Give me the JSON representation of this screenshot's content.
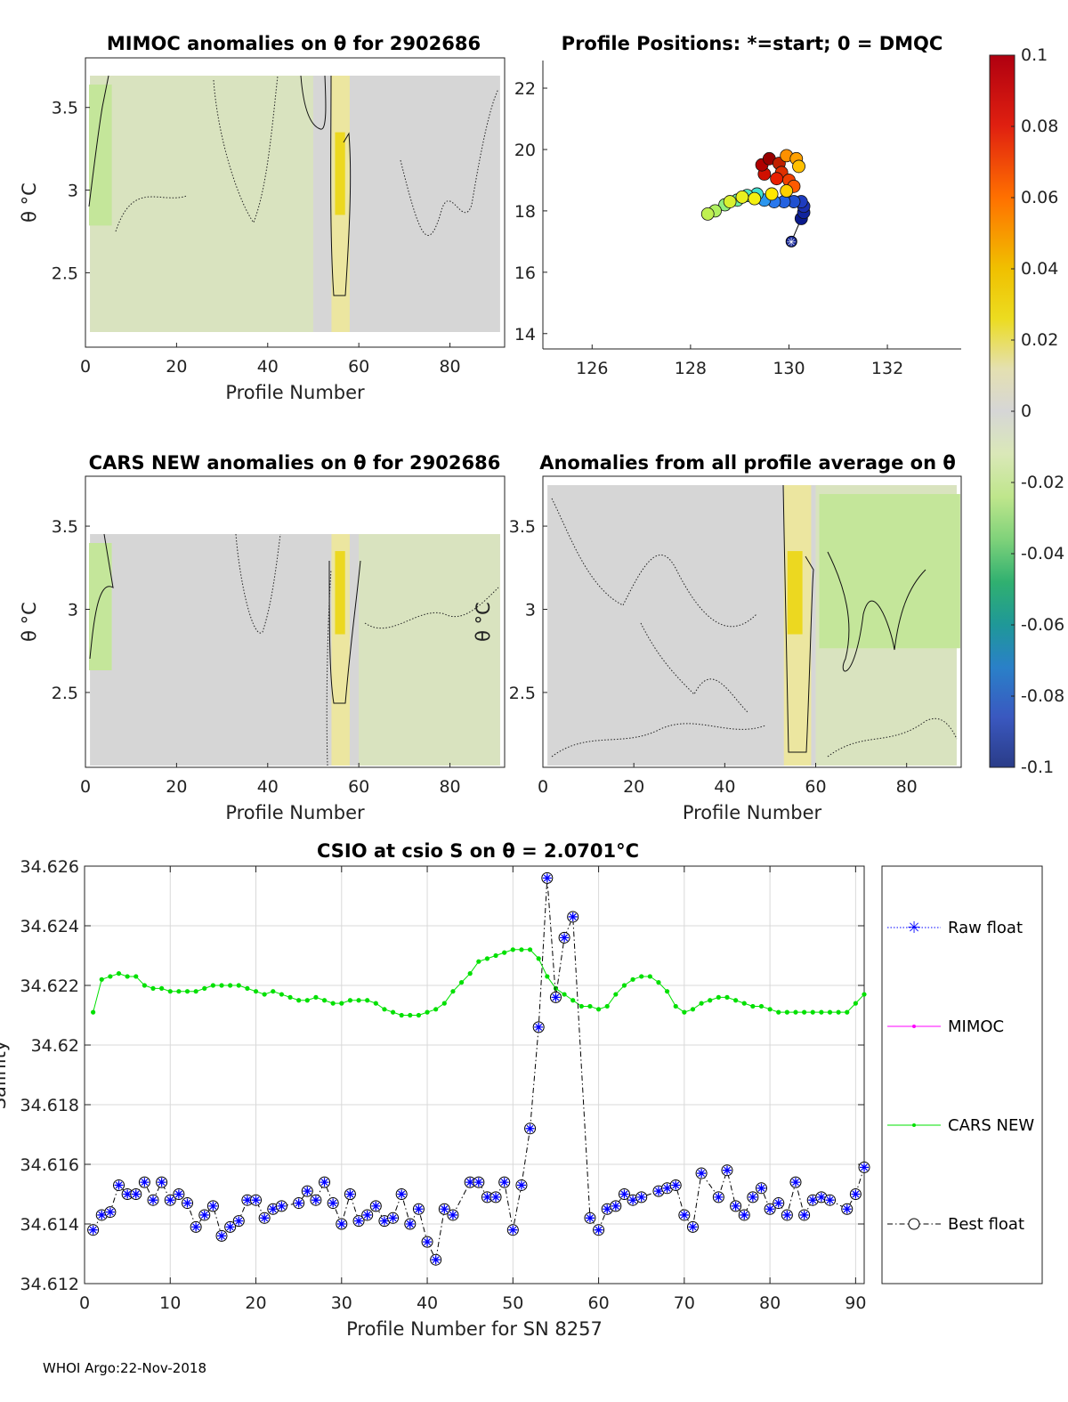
{
  "chart_data": [
    {
      "type": "heatmap",
      "title": "MIMOC anomalies on θ  for 2902686",
      "xlabel": "Profile Number",
      "ylabel": "θ °C",
      "xlim": [
        0,
        92
      ],
      "ylim": [
        2.05,
        3.8
      ],
      "xticks": [
        "0",
        "20",
        "40",
        "60",
        "80"
      ],
      "yticks": [
        "3.5",
        "3",
        "2.5"
      ],
      "warm_columns": {
        "profile_start": 54,
        "profile_end": 58,
        "value": 0.03
      },
      "cool_columns": {
        "profile_start": 0,
        "profile_end": 5,
        "value": -0.015
      }
    },
    {
      "type": "scatter",
      "title": "Profile Positions: *=start; 0 = DMQC",
      "xlim": [
        125,
        133.5
      ],
      "ylim": [
        13.5,
        22.9
      ],
      "xticks": [
        "126",
        "128",
        "130",
        "132"
      ],
      "yticks": [
        "22",
        "20",
        "18",
        "16",
        "14"
      ],
      "start": [
        130.05,
        17.0
      ],
      "points": [
        [
          130.25,
          17.75,
          "#0a1a8c"
        ],
        [
          130.3,
          17.95,
          "#10249e"
        ],
        [
          130.3,
          18.15,
          "#1a2fb0"
        ],
        [
          130.25,
          18.3,
          "#1e3cc0"
        ],
        [
          130.1,
          18.3,
          "#2050d0"
        ],
        [
          129.9,
          18.3,
          "#2462e0"
        ],
        [
          129.7,
          18.3,
          "#2a78ec"
        ],
        [
          129.5,
          18.35,
          "#2c96ee"
        ],
        [
          129.35,
          18.55,
          "#40e0d0"
        ],
        [
          129.15,
          18.5,
          "#50e8c0"
        ],
        [
          128.95,
          18.35,
          "#70f0a0"
        ],
        [
          128.7,
          18.2,
          "#90f080"
        ],
        [
          128.5,
          18.0,
          "#b0f060"
        ],
        [
          128.35,
          17.9,
          "#c0f050"
        ],
        [
          128.8,
          18.3,
          "#d8f030"
        ],
        [
          129.05,
          18.45,
          "#e8f020"
        ],
        [
          129.3,
          18.4,
          "#f4f010"
        ],
        [
          129.65,
          18.55,
          "#ffe800"
        ],
        [
          129.5,
          19.2,
          "#d01000"
        ],
        [
          129.45,
          19.5,
          "#b00000"
        ],
        [
          129.6,
          19.7,
          "#980000"
        ],
        [
          129.8,
          19.55,
          "#c02000"
        ],
        [
          129.85,
          19.25,
          "#e03000"
        ],
        [
          130.0,
          19.0,
          "#f04000"
        ],
        [
          130.1,
          18.8,
          "#ff5a00"
        ],
        [
          129.95,
          18.65,
          "#ffd000"
        ],
        [
          129.95,
          19.8,
          "#ff9000"
        ],
        [
          130.15,
          19.7,
          "#ffa000"
        ],
        [
          130.2,
          19.45,
          "#ffc000"
        ],
        [
          129.75,
          19.05,
          "#e82000"
        ]
      ]
    },
    {
      "type": "heatmap",
      "title": "CARS NEW anomalies on θ for 2902686",
      "xlabel": "Profile Number",
      "ylabel": "θ °C",
      "xlim": [
        0,
        92
      ],
      "ylim": [
        2.05,
        3.8
      ],
      "xticks": [
        "0",
        "20",
        "40",
        "60",
        "80"
      ],
      "yticks": [
        "3.5",
        "3",
        "2.5"
      ],
      "warm_columns": {
        "profile_start": 54,
        "profile_end": 58,
        "value": 0.03
      },
      "cool_columns": {
        "profile_start": 0,
        "profile_end": 5,
        "value": -0.015
      }
    },
    {
      "type": "heatmap",
      "title": "Anomalies from all profile average on θ",
      "xlabel": "Profile Number",
      "ylabel": "θ °C",
      "xlim": [
        0,
        92
      ],
      "ylim": [
        2.05,
        3.8
      ],
      "xticks": [
        "0",
        "20",
        "40",
        "60",
        "80"
      ],
      "yticks": [
        "3.5",
        "3",
        "2.5"
      ],
      "warm_columns": {
        "profile_start": 53,
        "profile_end": 59,
        "value": 0.03
      },
      "cool_columns": {
        "profile_start": 60,
        "profile_end": 91,
        "value": -0.012
      }
    },
    {
      "type": "colorbar",
      "range": [
        -0.1,
        0.1
      ],
      "ticks": [
        "0.1",
        "0.08",
        "0.06",
        "0.04",
        "0.02",
        "0",
        "-0.02",
        "-0.04",
        "-0.06",
        "-0.08",
        "-0.1"
      ]
    },
    {
      "type": "line",
      "title": "CSIO at csio S on θ = 2.0701°C",
      "xlabel": "Profile Number for SN 8257",
      "ylabel": "Salinity",
      "xlim": [
        0,
        91
      ],
      "ylim": [
        34.612,
        34.626
      ],
      "grid": true,
      "legend_placement": "right-outside",
      "xticks": [
        "0",
        "10",
        "20",
        "30",
        "40",
        "50",
        "60",
        "70",
        "80",
        "90"
      ],
      "yticks": [
        "34.626",
        "34.624",
        "34.622",
        "34.62",
        "34.618",
        "34.616",
        "34.614",
        "34.612"
      ],
      "series": [
        {
          "name": "Raw float",
          "color": "#0000ff"
        },
        {
          "name": "MIMOC",
          "color": "#ff00ff"
        },
        {
          "name": "CARS NEW",
          "color": "#00e000",
          "x": [
            1,
            2,
            3,
            4,
            5,
            6,
            7,
            8,
            9,
            10,
            11,
            12,
            13,
            14,
            15,
            16,
            17,
            18,
            19,
            20,
            21,
            22,
            23,
            24,
            25,
            26,
            27,
            28,
            29,
            30,
            31,
            32,
            33,
            34,
            35,
            36,
            37,
            38,
            39,
            40,
            41,
            42,
            43,
            44,
            45,
            46,
            47,
            48,
            49,
            50,
            51,
            52,
            53,
            54,
            55,
            56,
            57,
            58,
            59,
            60,
            61,
            62,
            63,
            64,
            65,
            66,
            67,
            68,
            69,
            70,
            71,
            72,
            73,
            74,
            75,
            76,
            77,
            78,
            79,
            80,
            81,
            82,
            83,
            84,
            85,
            86,
            87,
            88,
            89,
            90,
            91
          ],
          "y": [
            34.6211,
            34.6222,
            34.6223,
            34.6224,
            34.6223,
            34.6223,
            34.622,
            34.6219,
            34.6219,
            34.6218,
            34.6218,
            34.6218,
            34.6218,
            34.6219,
            34.622,
            34.622,
            34.622,
            34.622,
            34.6219,
            34.6218,
            34.6217,
            34.6218,
            34.6217,
            34.6216,
            34.6215,
            34.6215,
            34.6216,
            34.6215,
            34.6214,
            34.6214,
            34.6215,
            34.6215,
            34.6215,
            34.6214,
            34.6212,
            34.6211,
            34.621,
            34.621,
            34.621,
            34.6211,
            34.6212,
            34.6214,
            34.6218,
            34.6221,
            34.6224,
            34.6228,
            34.6229,
            34.623,
            34.6231,
            34.6232,
            34.6232,
            34.6232,
            34.6229,
            34.6223,
            34.6219,
            34.6217,
            34.6215,
            34.6213,
            34.6213,
            34.6212,
            34.6213,
            34.6217,
            34.622,
            34.6222,
            34.6223,
            34.6223,
            34.6221,
            34.6218,
            34.6213,
            34.6211,
            34.6212,
            34.6214,
            34.6215,
            34.6216,
            34.6216,
            34.6215,
            34.6214,
            34.6213,
            34.6213,
            34.6212,
            34.6211,
            34.6211,
            34.6211,
            34.6211,
            34.6211,
            34.6211,
            34.6211,
            34.6211,
            34.6211,
            34.6214,
            34.6217
          ]
        },
        {
          "name": "Best float",
          "color": "#000000",
          "x": [
            1,
            2,
            3,
            4,
            5,
            6,
            7,
            8,
            9,
            10,
            11,
            12,
            13,
            14,
            15,
            16,
            17,
            18,
            19,
            20,
            21,
            22,
            23,
            25,
            26,
            27,
            28,
            29,
            30,
            31,
            32,
            33,
            34,
            35,
            36,
            37,
            38,
            39,
            40,
            41,
            42,
            43,
            45,
            46,
            47,
            48,
            49,
            50,
            51,
            52,
            53,
            54,
            55,
            56,
            57,
            59,
            60,
            61,
            62,
            63,
            64,
            65,
            67,
            68,
            69,
            70,
            71,
            72,
            74,
            75,
            76,
            77,
            78,
            79,
            80,
            81,
            82,
            83,
            84,
            85,
            86,
            87,
            89,
            90,
            91
          ],
          "y": [
            34.6138,
            34.6143,
            34.6144,
            34.6153,
            34.615,
            34.615,
            34.6154,
            34.6148,
            34.6154,
            34.6148,
            34.615,
            34.6147,
            34.6139,
            34.6143,
            34.6146,
            34.6136,
            34.6139,
            34.6141,
            34.6148,
            34.6148,
            34.6142,
            34.6145,
            34.6146,
            34.6147,
            34.6151,
            34.6148,
            34.6154,
            34.6147,
            34.614,
            34.615,
            34.6141,
            34.6143,
            34.6146,
            34.6141,
            34.6142,
            34.615,
            34.614,
            34.6145,
            34.6134,
            34.6128,
            34.6145,
            34.6143,
            34.6154,
            34.6154,
            34.6149,
            34.6149,
            34.6154,
            34.6138,
            34.6153,
            34.6172,
            34.6206,
            34.6256,
            34.6216,
            34.6236,
            34.6243,
            34.6142,
            34.6138,
            34.6145,
            34.6146,
            34.615,
            34.6148,
            34.6149,
            34.6151,
            34.6152,
            34.6153,
            34.6143,
            34.6139,
            34.6157,
            34.6149,
            34.6158,
            34.6146,
            34.6143,
            34.6149,
            34.6152,
            34.6145,
            34.6147,
            34.6143,
            34.6154,
            34.6143,
            34.6148,
            34.6149,
            34.6148,
            34.6145,
            34.615,
            34.6159
          ]
        }
      ]
    }
  ],
  "footer": "WHOI Argo:22-Nov-2018"
}
